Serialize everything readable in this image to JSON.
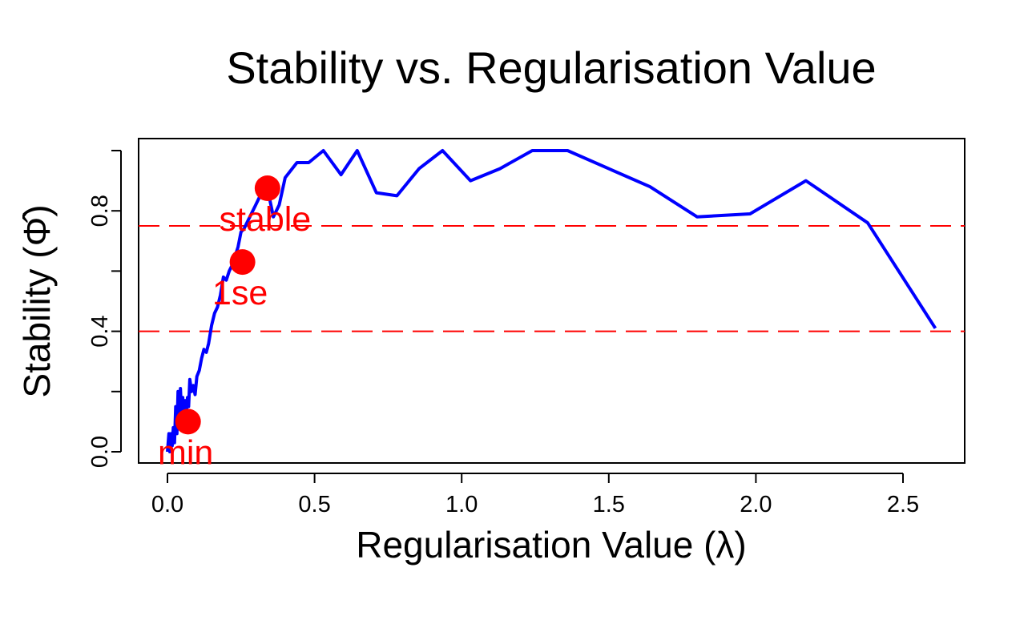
{
  "chart_data": {
    "type": "line",
    "title": "Stability vs. Regularisation Value",
    "xlabel": "Regularisation Value (λ)",
    "ylabel": "Stability (Φ̂)",
    "xlim": [
      -0.1,
      2.7
    ],
    "ylim": [
      -0.04,
      1.04
    ],
    "x_ticks": [
      "0.0",
      "0.5",
      "1.0",
      "1.5",
      "2.0",
      "2.5"
    ],
    "y_ticks": [
      "0.0",
      "0.4",
      "0.8"
    ],
    "grid": false,
    "series": [
      {
        "color": "#0000ff",
        "x": [
          0.0,
          0.005,
          0.008,
          0.012,
          0.016,
          0.02,
          0.024,
          0.028,
          0.032,
          0.036,
          0.04,
          0.044,
          0.048,
          0.052,
          0.056,
          0.06,
          0.064,
          0.068,
          0.072,
          0.076,
          0.082,
          0.088,
          0.094,
          0.1,
          0.108,
          0.116,
          0.124,
          0.132,
          0.14,
          0.15,
          0.16,
          0.17,
          0.18,
          0.19,
          0.2,
          0.21,
          0.22,
          0.23,
          0.24,
          0.25,
          0.26,
          0.27,
          0.28,
          0.29,
          0.3,
          0.31,
          0.32,
          0.33,
          0.345,
          0.36,
          0.38,
          0.4,
          0.44,
          0.48,
          0.53,
          0.59,
          0.645,
          0.71,
          0.78,
          0.855,
          0.935,
          1.03,
          1.13,
          1.24,
          1.36,
          1.5,
          1.64,
          1.8,
          1.98,
          2.17,
          2.38,
          2.61
        ],
        "values": [
          0.0,
          0.06,
          0.0,
          0.06,
          0.02,
          0.08,
          0.03,
          0.15,
          0.06,
          0.2,
          0.09,
          0.21,
          0.12,
          0.18,
          0.1,
          0.17,
          0.13,
          0.18,
          0.15,
          0.24,
          0.2,
          0.22,
          0.19,
          0.25,
          0.27,
          0.31,
          0.34,
          0.33,
          0.36,
          0.42,
          0.46,
          0.48,
          0.52,
          0.58,
          0.57,
          0.6,
          0.62,
          0.65,
          0.68,
          0.73,
          0.74,
          0.76,
          0.78,
          0.8,
          0.82,
          0.84,
          0.86,
          0.88,
          0.85,
          0.78,
          0.82,
          0.91,
          0.96,
          0.96,
          1.0,
          0.92,
          1.0,
          0.86,
          0.85,
          0.94,
          1.0,
          0.9,
          0.94,
          1.0,
          1.0,
          0.94,
          0.88,
          0.78,
          0.79,
          0.9,
          0.76,
          0.41
        ]
      }
    ],
    "reference_lines": [
      {
        "y": 0.75,
        "color": "#ff0000",
        "style": "dashed"
      },
      {
        "y": 0.4,
        "color": "#ff0000",
        "style": "dashed"
      }
    ],
    "highlighted_points": [
      {
        "label": "min",
        "x": 0.07,
        "y": 0.1,
        "color": "#ff0000"
      },
      {
        "label": "1se",
        "x": 0.255,
        "y": 0.63,
        "color": "#ff0000"
      },
      {
        "label": "stable",
        "x": 0.34,
        "y": 0.875,
        "color": "#ff0000"
      }
    ]
  }
}
